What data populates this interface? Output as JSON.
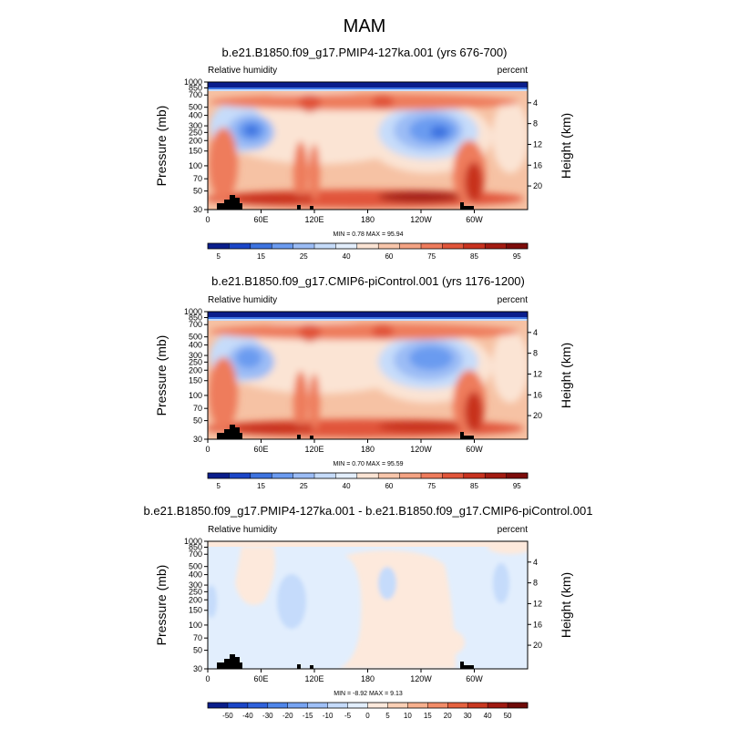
{
  "figure_title": "MAM",
  "chart_data": [
    {
      "type": "heatmap",
      "title": "b.e21.B1850.f09_g17.PMIP4-127ka.001 (yrs 676-700)",
      "left_label": "Relative humidity",
      "right_label": "percent",
      "ylabel": "Pressure (mb)",
      "ylabel_right": "Height (km)",
      "x_ticks": [
        "0",
        "60E",
        "120E",
        "180",
        "120W",
        "60W"
      ],
      "y_ticks": [
        "1000",
        "850",
        "700",
        "500",
        "400",
        "300",
        "250",
        "200",
        "150",
        "100",
        "70",
        "50",
        "30"
      ],
      "height_ticks": [
        "4",
        "8",
        "12",
        "16",
        "20"
      ],
      "min_text": "MIN =   0.78  MAX =   95.94",
      "colorbar_ticks": [
        "5",
        "15",
        "25",
        "40",
        "60",
        "75",
        "85",
        "95"
      ],
      "colorbar_colors": [
        "#0a1e8c",
        "#1b46c8",
        "#3d73e0",
        "#6b9bf0",
        "#9bbcf5",
        "#c6dcfa",
        "#e3eefc",
        "#fbe4d4",
        "#f8c6ab",
        "#f4a383",
        "#ee7b5c",
        "#e1553a",
        "#c8321f",
        "#a31b12",
        "#7d0c0a"
      ]
    },
    {
      "type": "heatmap",
      "title": "b.e21.B1850.f09_g17.CMIP6-piControl.001 (yrs 1176-1200)",
      "left_label": "Relative humidity",
      "right_label": "percent",
      "ylabel": "Pressure (mb)",
      "ylabel_right": "Height (km)",
      "x_ticks": [
        "0",
        "60E",
        "120E",
        "180",
        "120W",
        "60W"
      ],
      "y_ticks": [
        "1000",
        "850",
        "700",
        "500",
        "400",
        "300",
        "250",
        "200",
        "150",
        "100",
        "70",
        "50",
        "30"
      ],
      "height_ticks": [
        "4",
        "8",
        "12",
        "16",
        "20"
      ],
      "min_text": "MIN =   0.70  MAX =   95.59",
      "colorbar_ticks": [
        "5",
        "15",
        "25",
        "40",
        "60",
        "75",
        "85",
        "95"
      ],
      "colorbar_colors": [
        "#0a1e8c",
        "#1b46c8",
        "#3d73e0",
        "#6b9bf0",
        "#9bbcf5",
        "#c6dcfa",
        "#e3eefc",
        "#fbe4d4",
        "#f8c6ab",
        "#f4a383",
        "#ee7b5c",
        "#e1553a",
        "#c8321f",
        "#a31b12",
        "#7d0c0a"
      ]
    },
    {
      "type": "heatmap",
      "title": "b.e21.B1850.f09_g17.PMIP4-127ka.001 - b.e21.B1850.f09_g17.CMIP6-piControl.001",
      "left_label": "Relative humidity",
      "right_label": "percent",
      "ylabel": "Pressure (mb)",
      "ylabel_right": "Height (km)",
      "x_ticks": [
        "0",
        "60E",
        "120E",
        "180",
        "120W",
        "60W"
      ],
      "y_ticks": [
        "1000",
        "850",
        "700",
        "500",
        "400",
        "300",
        "250",
        "200",
        "150",
        "100",
        "70",
        "50",
        "30"
      ],
      "height_ticks": [
        "4",
        "8",
        "12",
        "16",
        "20"
      ],
      "min_text": "MIN =  -8.92  MAX =   9.13",
      "colorbar_ticks": [
        "-50",
        "-40",
        "-30",
        "-20",
        "-15",
        "-10",
        "-5",
        "0",
        "5",
        "10",
        "15",
        "20",
        "30",
        "40",
        "50"
      ],
      "colorbar_colors": [
        "#0a1e8c",
        "#1b46c8",
        "#2f62dc",
        "#4f86ea",
        "#77a4f2",
        "#9fc0f7",
        "#c5dbfb",
        "#e2eefd",
        "#fde9dc",
        "#fbd0b6",
        "#f7b08e",
        "#f28c68",
        "#e5623f",
        "#c93821",
        "#a01a12",
        "#6f0a08"
      ]
    }
  ]
}
